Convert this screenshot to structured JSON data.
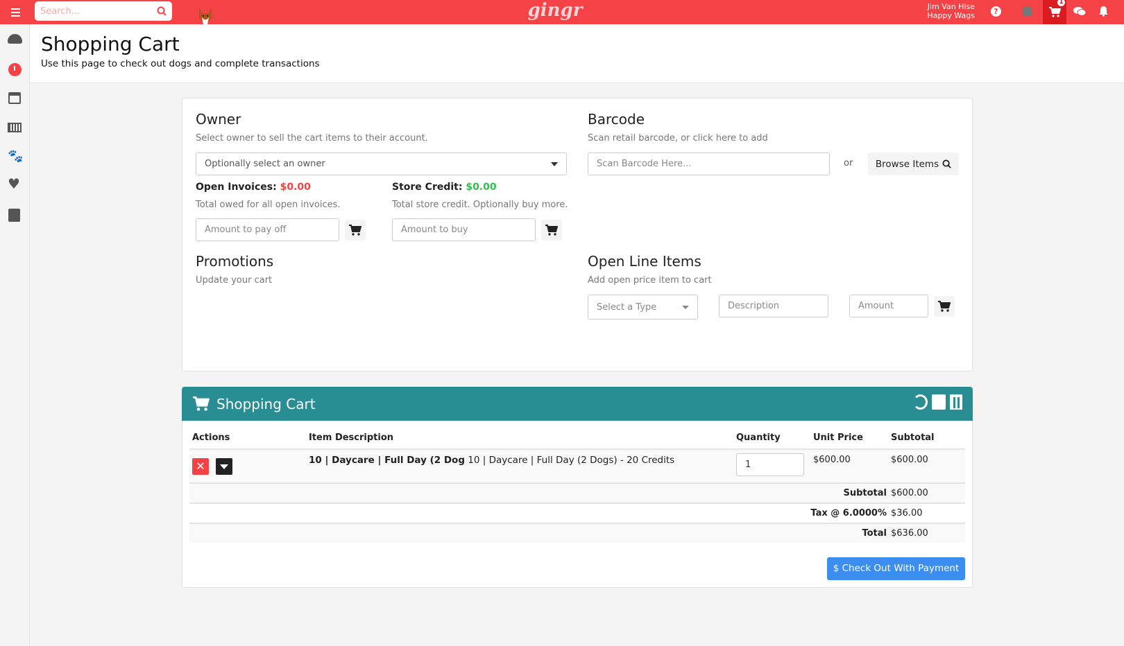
{
  "topbar": {
    "search_placeholder": "Search...",
    "logo": "gingr",
    "user_name": "Jim Van Hise",
    "location": "Happy Wags",
    "cart_count": "1"
  },
  "sidebar": {
    "items": [
      "dashboard-icon",
      "clock-icon",
      "calendar-icon",
      "barcode-icon",
      "paw-icon",
      "heart-icon",
      "book-icon"
    ]
  },
  "page": {
    "title": "Shopping Cart",
    "subtitle": "Use this page to check out dogs and complete transactions"
  },
  "owner": {
    "title": "Owner",
    "desc": "Select owner to sell the cart items to their account.",
    "select_placeholder": "Optionally select an owner",
    "open_invoices_label": "Open Invoices:",
    "open_invoices_value": "$0.00",
    "open_invoices_desc": "Total owed for all open invoices.",
    "pay_placeholder": "Amount to pay off",
    "store_credit_label": "Store Credit:",
    "store_credit_value": "$0.00",
    "store_credit_desc": "Total store credit. Optionally buy more.",
    "buy_placeholder": "Amount to buy"
  },
  "barcode": {
    "title": "Barcode",
    "desc": "Scan retail barcode, or click here to add",
    "placeholder": "Scan Barcode Here...",
    "or": "or",
    "browse_label": "Browse Items"
  },
  "promotions": {
    "title": "Promotions",
    "desc": "Update your cart"
  },
  "open_line": {
    "title": "Open Line Items",
    "desc": "Add open price item to cart",
    "type_placeholder": "Select a Type",
    "desc_placeholder": "Description",
    "amount_placeholder": "Amount"
  },
  "cart": {
    "title": "Shopping Cart",
    "columns": [
      "Actions",
      "Item Description",
      "Quantity",
      "Unit Price",
      "Subtotal"
    ],
    "rows": [
      {
        "name_bold": "10 | Daycare | Full Day (2 Dog",
        "name": "10 | Daycare | Full Day (2 Dogs) - 20 Credits",
        "quantity": "1",
        "unit_price": "$600.00",
        "subtotal": "$600.00"
      }
    ],
    "subtotal_label": "Subtotal",
    "subtotal": "$600.00",
    "tax_label": "Tax @ 6.0000%",
    "tax": "$36.00",
    "total_label": "Total",
    "total": "$636.00",
    "checkout_label": "$ Check Out With Payment"
  },
  "colors": {
    "brand": "#f44246",
    "teal": "#288e94",
    "danger": "#f44246",
    "success": "#2fbf4f",
    "primary": "#3b8ef0"
  }
}
